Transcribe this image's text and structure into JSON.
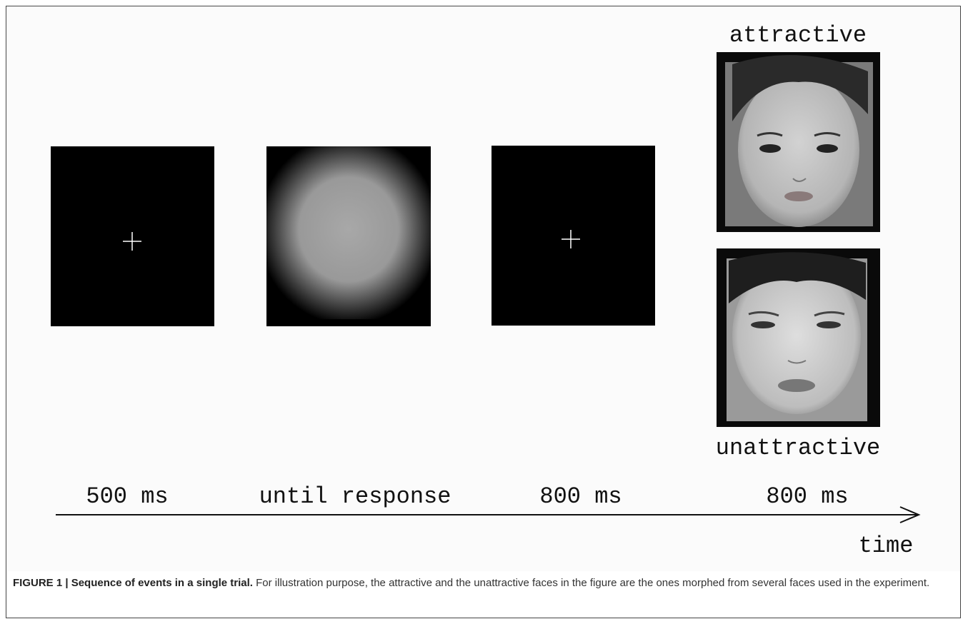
{
  "figure": {
    "faces": {
      "top_label": "attractive",
      "bottom_label": "unattractive"
    },
    "durations": [
      "500 ms",
      "until response",
      "800 ms",
      "800 ms"
    ],
    "axis_label": "time"
  },
  "caption": {
    "label": "FIGURE 1 | Sequence of events in a single trial.",
    "text": "For illustration purpose, the attractive and the unattractive faces in the figure are the ones morphed from several faces used in the experiment."
  }
}
